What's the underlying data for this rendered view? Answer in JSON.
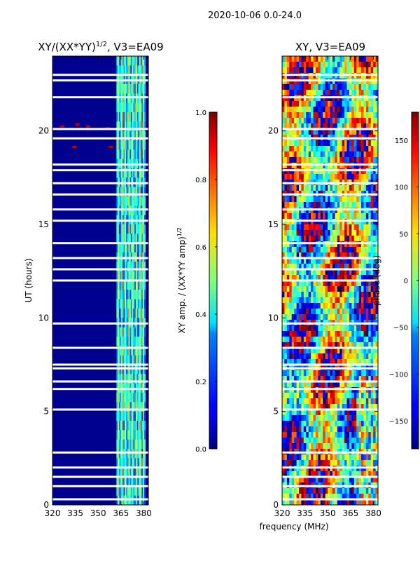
{
  "suptitle": "2020-10-06 0.0-24.0",
  "shared": {
    "xlabel": "frequency (MHz)",
    "x_ticks": [
      320,
      335,
      350,
      365,
      380
    ],
    "xlim": [
      320,
      383
    ],
    "y_ticks": [
      0,
      5,
      10,
      15,
      20
    ],
    "ylim": [
      0,
      24
    ]
  },
  "chart_data": [
    {
      "type": "heatmap",
      "title_main": "XY/(XX*YY)",
      "title_exp": "1/2",
      "title_rest": ", V3=EA09",
      "ylabel": "UT (hours)",
      "colorbar": {
        "label_main": "XY amp. / (XX*YY amp)",
        "label_exp": "1/2",
        "range": [
          0.0,
          1.0
        ],
        "ticks": [
          "0.0",
          "0.2",
          "0.4",
          "0.6",
          "0.8",
          "1.0"
        ],
        "tick_values": [
          0.0,
          0.2,
          0.4,
          0.6,
          0.8,
          1.0
        ]
      },
      "bright_band_mhz": [
        362,
        381
      ],
      "blank_ut_hours": [
        0.3,
        1.0,
        1.5,
        2.0,
        2.8,
        5.1,
        6.2,
        6.6,
        7.3,
        7.5,
        8.4,
        9.7,
        12.0,
        12.6,
        13.2,
        14.0,
        15.2,
        15.8,
        16.6,
        17.2,
        17.9,
        18.2,
        19.6,
        20.1,
        21.8,
        22.7,
        23.0
      ]
    },
    {
      "type": "heatmap",
      "title": "XY, V3=EA09",
      "colorbar": {
        "label": "phase (deg)",
        "range": [
          -180,
          180
        ],
        "ticks": [
          "−150",
          "−100",
          "−50",
          "0",
          "50",
          "100",
          "150"
        ],
        "tick_values": [
          -150,
          -100,
          -50,
          0,
          50,
          100,
          150
        ]
      },
      "blank_ut_hours": [
        0.3,
        1.0,
        1.5,
        2.0,
        2.8,
        5.1,
        6.2,
        6.6,
        7.3,
        7.5,
        8.4,
        9.7,
        12.0,
        12.6,
        13.2,
        14.0,
        15.2,
        15.8,
        16.6,
        17.2,
        17.9,
        18.2,
        19.6,
        20.1,
        21.8,
        22.7,
        23.0
      ]
    }
  ]
}
